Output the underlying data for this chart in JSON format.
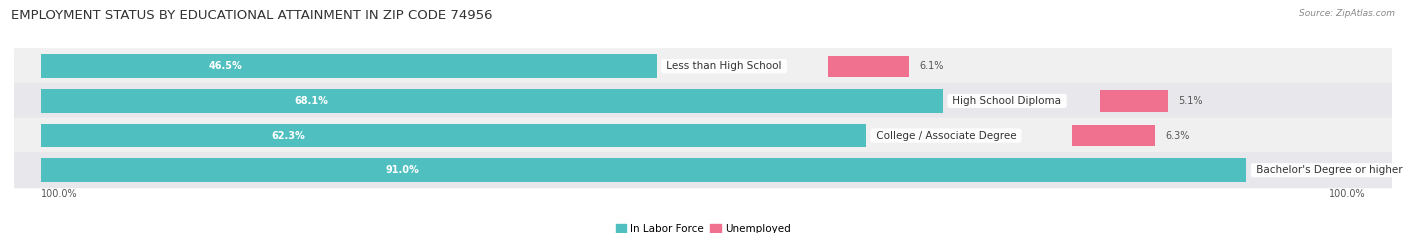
{
  "title": "EMPLOYMENT STATUS BY EDUCATIONAL ATTAINMENT IN ZIP CODE 74956",
  "source": "Source: ZipAtlas.com",
  "categories": [
    "Less than High School",
    "High School Diploma",
    "College / Associate Degree",
    "Bachelor's Degree or higher"
  ],
  "in_labor_force": [
    46.5,
    68.1,
    62.3,
    91.0
  ],
  "unemployed": [
    6.1,
    5.1,
    6.3,
    0.0
  ],
  "labor_color": "#50BFBF",
  "unemployed_color": "#F07090",
  "unemployed_color_light": "#F5A0B8",
  "row_bg_color_odd": "#F0F0F0",
  "row_bg_color_even": "#E8E8EC",
  "title_fontsize": 9.5,
  "source_fontsize": 6.5,
  "label_fontsize": 7.5,
  "value_fontsize": 7,
  "tick_fontsize": 7,
  "x_left_label": "100.0%",
  "x_right_label": "100.0%"
}
